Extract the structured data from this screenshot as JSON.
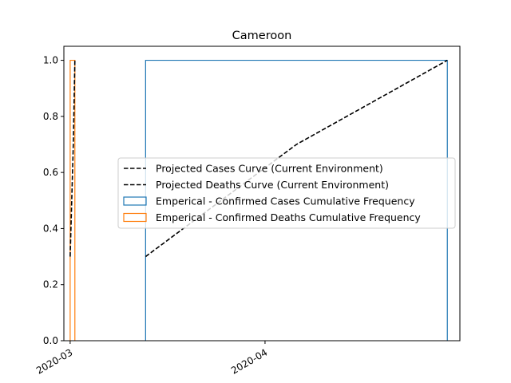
{
  "chart_data": {
    "type": "line",
    "title": "Cameroon",
    "xlabel": "",
    "ylabel": "",
    "x_axis_type": "date",
    "xlim": [
      "2020-02-29",
      "2020-05-02"
    ],
    "ylim": [
      0,
      1.05
    ],
    "x_ticks": [
      {
        "value": "2020-03-01",
        "label": "2020-03"
      },
      {
        "value": "2020-04-01",
        "label": "2020-04"
      }
    ],
    "y_ticks": [
      {
        "value": 0.0,
        "label": "0.0"
      },
      {
        "value": 0.2,
        "label": "0.2"
      },
      {
        "value": 0.4,
        "label": "0.4"
      },
      {
        "value": 0.6,
        "label": "0.6"
      },
      {
        "value": 0.8,
        "label": "0.8"
      },
      {
        "value": 1.0,
        "label": "1.0"
      }
    ],
    "grid": false,
    "legend_position": "center-right",
    "series": [
      {
        "name": "Projected Cases Curve (Current Environment)",
        "kind": "line",
        "style": "dashed",
        "color": "#000000",
        "x": [
          "2020-03-13",
          "2020-04-06",
          "2020-04-30"
        ],
        "y": [
          0.3,
          0.7,
          1.0
        ]
      },
      {
        "name": "Projected Deaths Curve (Current Environment)",
        "kind": "line",
        "style": "dashed",
        "color": "#000000",
        "x": [
          "2020-03-01",
          "2020-03-01 12:00",
          "2020-03-01 18:00"
        ],
        "y": [
          0.3,
          0.7,
          1.0
        ]
      },
      {
        "name": "Emperical - Confirmed Cases Cumulative Frequency",
        "kind": "step-histogram",
        "color": "#1f77b4",
        "x_start": "2020-03-13",
        "x_end": "2020-04-30",
        "x_step": "2020-04-06",
        "y": [
          0.0,
          1.0
        ]
      },
      {
        "name": "Emperical - Confirmed Deaths Cumulative Frequency",
        "kind": "step-histogram",
        "color": "#ff7f0e",
        "x_start": "2020-03-01",
        "x_end": "2020-03-01 18:00",
        "x_step": "2020-03-01 12:00",
        "y": [
          0.0,
          1.0
        ]
      }
    ]
  }
}
